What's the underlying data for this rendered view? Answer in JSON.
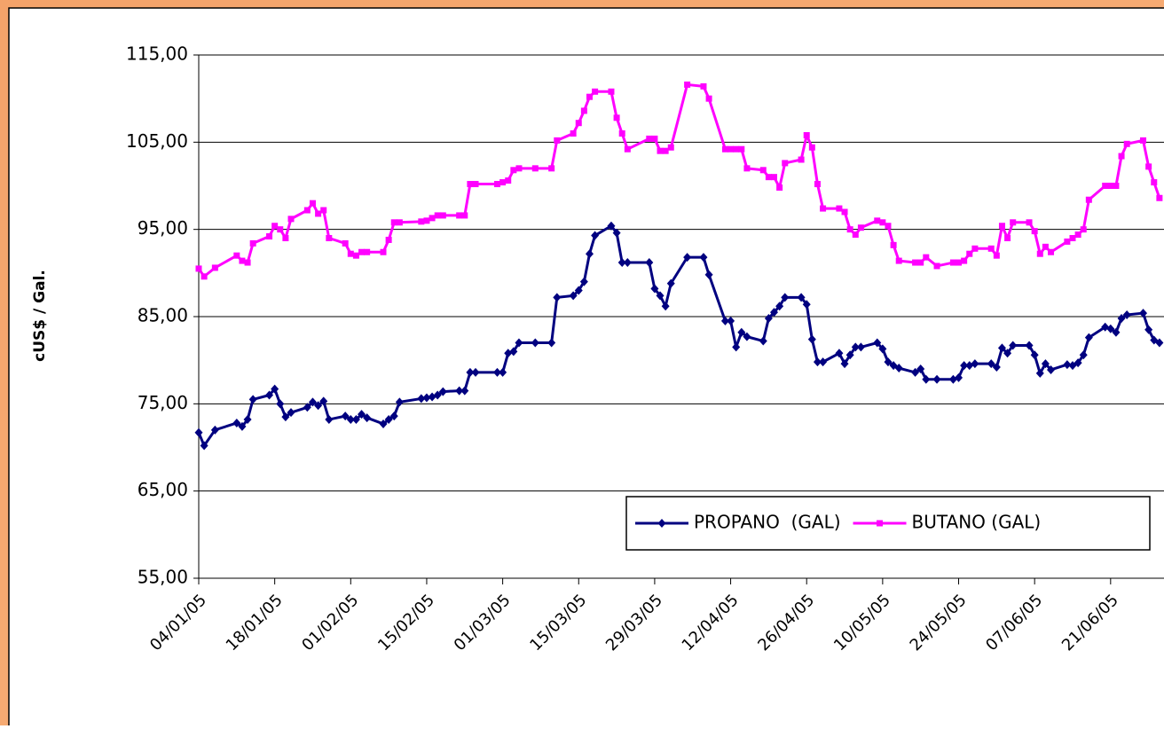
{
  "chart_data": {
    "type": "line",
    "y_label": "cUS$ / Gal.",
    "x": [
      "04/01/05",
      "05/01/05",
      "07/01/05",
      "11/01/05",
      "12/01/05",
      "13/01/05",
      "14/01/05",
      "17/01/05",
      "18/01/05",
      "19/01/05",
      "20/01/05",
      "21/01/05",
      "24/01/05",
      "25/01/05",
      "26/01/05",
      "27/01/05",
      "28/01/05",
      "31/01/05",
      "01/02/05",
      "02/02/05",
      "03/02/05",
      "04/02/05",
      "07/02/05",
      "08/02/05",
      "09/02/05",
      "10/02/05",
      "14/02/05",
      "15/02/05",
      "16/02/05",
      "17/02/05",
      "18/02/05",
      "21/02/05",
      "22/02/05",
      "23/02/05",
      "24/02/05",
      "28/02/05",
      "01/03/05",
      "02/03/05",
      "03/03/05",
      "04/03/05",
      "07/03/05",
      "10/03/05",
      "11/03/05",
      "14/03/05",
      "15/03/05",
      "16/03/05",
      "17/03/05",
      "18/03/05",
      "21/03/05",
      "22/03/05",
      "23/03/05",
      "24/03/05",
      "28/03/05",
      "29/03/05",
      "30/03/05",
      "31/03/05",
      "01/04/05",
      "04/04/05",
      "07/04/05",
      "08/04/05",
      "11/04/05",
      "12/04/05",
      "13/04/05",
      "14/04/05",
      "15/04/05",
      "18/04/05",
      "19/04/05",
      "20/04/05",
      "21/04/05",
      "22/04/05",
      "25/04/05",
      "26/04/05",
      "27/04/05",
      "28/04/05",
      "29/04/05",
      "02/05/05",
      "03/05/05",
      "04/05/05",
      "05/05/05",
      "06/05/05",
      "09/05/05",
      "10/05/05",
      "11/05/05",
      "12/05/05",
      "13/05/05",
      "16/05/05",
      "17/05/05",
      "18/05/05",
      "20/05/05",
      "23/05/05",
      "24/05/05",
      "25/05/05",
      "26/05/05",
      "27/05/05",
      "30/05/05",
      "31/05/05",
      "01/06/05",
      "02/06/05",
      "03/06/05",
      "06/06/05",
      "07/06/05",
      "08/06/05",
      "09/06/05",
      "10/06/05",
      "13/06/05",
      "14/06/05",
      "15/06/05",
      "16/06/05",
      "17/06/05",
      "20/06/05",
      "21/06/05",
      "22/06/05",
      "23/06/05",
      "24/06/05",
      "27/06/05",
      "28/06/05",
      "29/06/05",
      "30/06/05"
    ],
    "series": [
      {
        "name": "PROPANO  (GAL)",
        "color": "#000080",
        "marker": "diamond",
        "values": [
          71.7,
          70.2,
          72.0,
          72.8,
          72.4,
          73.2,
          75.5,
          76.0,
          76.7,
          75.0,
          73.5,
          74.0,
          74.6,
          75.2,
          74.8,
          75.3,
          73.2,
          73.6,
          73.2,
          73.2,
          73.8,
          73.4,
          72.7,
          73.2,
          73.6,
          75.2,
          75.6,
          75.7,
          75.8,
          76.0,
          76.4,
          76.5,
          76.5,
          78.6,
          78.6,
          78.6,
          78.6,
          80.8,
          81.0,
          82.0,
          82.0,
          82.0,
          87.2,
          87.4,
          88.0,
          89.0,
          92.2,
          94.3,
          95.4,
          94.6,
          91.2,
          91.2,
          91.2,
          88.2,
          87.4,
          86.2,
          88.8,
          91.8,
          91.8,
          89.8,
          84.5,
          84.5,
          81.5,
          83.2,
          82.7,
          82.2,
          84.8,
          85.5,
          86.2,
          87.2,
          87.2,
          86.4,
          82.4,
          79.8,
          79.8,
          80.8,
          79.6,
          80.6,
          81.5,
          81.5,
          82.0,
          81.3,
          79.8,
          79.4,
          79.1,
          78.6,
          79.0,
          77.8,
          77.8,
          77.8,
          78.0,
          79.4,
          79.4,
          79.6,
          79.6,
          79.2,
          81.4,
          80.8,
          81.7,
          81.7,
          80.6,
          78.5,
          79.6,
          78.9,
          79.5,
          79.4,
          79.7,
          80.6,
          82.6,
          83.8,
          83.6,
          83.2,
          84.8,
          85.2,
          85.4,
          83.5,
          82.3,
          82.0
        ]
      },
      {
        "name": "BUTANO (GAL)",
        "color": "#ff00ff",
        "marker": "square",
        "values": [
          90.5,
          89.6,
          90.6,
          92.0,
          91.4,
          91.2,
          93.4,
          94.2,
          95.4,
          95.0,
          94.0,
          96.2,
          97.2,
          98.0,
          96.8,
          97.2,
          94.0,
          93.4,
          92.2,
          92.0,
          92.4,
          92.4,
          92.4,
          93.8,
          95.8,
          95.8,
          95.9,
          96.0,
          96.3,
          96.6,
          96.6,
          96.6,
          96.6,
          100.2,
          100.2,
          100.2,
          100.4,
          100.6,
          101.8,
          102.0,
          102.0,
          102.0,
          105.2,
          106.0,
          107.2,
          108.6,
          110.2,
          110.8,
          110.8,
          107.8,
          106.0,
          104.2,
          105.4,
          105.4,
          104.0,
          104.0,
          104.4,
          111.6,
          111.4,
          110.0,
          104.2,
          104.2,
          104.2,
          104.2,
          102.0,
          101.8,
          101.0,
          101.0,
          99.8,
          102.6,
          103.0,
          105.8,
          104.4,
          100.2,
          97.4,
          97.4,
          97.0,
          95.0,
          94.4,
          95.2,
          96.0,
          95.8,
          95.4,
          93.2,
          91.4,
          91.2,
          91.2,
          91.8,
          90.8,
          91.2,
          91.2,
          91.4,
          92.2,
          92.8,
          92.8,
          92.0,
          95.4,
          94.0,
          95.8,
          95.8,
          94.8,
          92.2,
          93.0,
          92.4,
          93.6,
          94.0,
          94.4,
          95.0,
          98.4,
          100.0,
          100.0,
          100.0,
          103.4,
          104.8,
          105.2,
          102.2,
          100.4,
          98.6
        ]
      }
    ],
    "xlim": [
      "04/01/05",
      "01/07/05"
    ],
    "xticks": [
      "04/01/05",
      "18/01/05",
      "01/02/05",
      "15/02/05",
      "01/03/05",
      "15/03/05",
      "29/03/05",
      "12/04/05",
      "26/04/05",
      "10/05/05",
      "24/05/05",
      "07/06/05",
      "21/06/05"
    ],
    "ylim": [
      55,
      115
    ],
    "yticks": [
      {
        "value": 55,
        "label": "55,00"
      },
      {
        "value": 65,
        "label": "65,00"
      },
      {
        "value": 75,
        "label": "75,00"
      },
      {
        "value": 85,
        "label": "85,00"
      },
      {
        "value": 95,
        "label": "95,00"
      },
      {
        "value": 105,
        "label": "105,00"
      },
      {
        "value": 115,
        "label": "115,00"
      }
    ],
    "grid": true,
    "legend": "lower right"
  }
}
